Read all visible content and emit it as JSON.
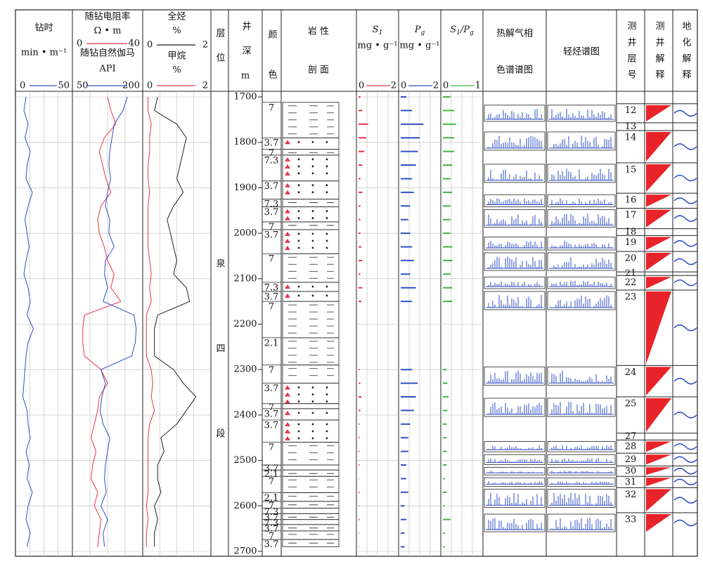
{
  "chart_data": {
    "type": "well-log",
    "depth": {
      "label": "井深",
      "unit": "m",
      "ylim": [
        1700,
        2700
      ],
      "yticks": [
        1700,
        1800,
        1900,
        2000,
        2100,
        2200,
        2300,
        2400,
        2500,
        2600,
        2700
      ],
      "samples": [
        1700,
        1730,
        1760,
        1790,
        1820,
        1850,
        1880,
        1910,
        1940,
        1970,
        2000,
        2030,
        2060,
        2090,
        2120,
        2150,
        2180,
        2210,
        2240,
        2270,
        2300,
        2330,
        2360,
        2390,
        2420,
        2450,
        2480,
        2510,
        2540,
        2570,
        2600,
        2630,
        2660,
        2690
      ]
    },
    "tracks": [
      {
        "name": "钻时",
        "unit": "min • m⁻¹",
        "xlim": [
          0,
          50
        ],
        "color": "#2f4fc4",
        "kind": "line",
        "values": [
          8,
          6,
          10,
          7,
          12,
          9,
          8,
          14,
          10,
          7,
          9,
          11,
          8,
          6,
          10,
          12,
          9,
          15,
          10,
          8,
          7,
          6,
          5,
          9,
          10,
          12,
          8,
          11,
          9,
          14,
          10,
          8,
          12,
          9
        ]
      },
      {
        "name": "随钻电阻率",
        "unit": "Ω • m",
        "xlim": [
          0,
          40
        ],
        "color": "#e8334a",
        "kind": "line",
        "values": [
          20,
          22,
          25,
          18,
          15,
          17,
          19,
          22,
          16,
          14,
          15,
          18,
          20,
          24,
          22,
          28,
          6,
          5,
          5,
          6,
          16,
          20,
          15,
          14,
          12,
          10,
          13,
          11,
          10,
          14,
          12,
          16,
          15,
          14
        ]
      },
      {
        "name": "随钻自然伽马",
        "unit": "API",
        "xlim": [
          50,
          200
        ],
        "color": "#2f4fc4",
        "kind": "line",
        "values": [
          170,
          160,
          140,
          135,
          130,
          128,
          132,
          125,
          120,
          130,
          128,
          140,
          120,
          118,
          125,
          115,
          185,
          190,
          188,
          180,
          110,
          120,
          112,
          108,
          115,
          130,
          125,
          120,
          118,
          122,
          110,
          125,
          115,
          118
        ]
      },
      {
        "name": "全烃",
        "unit": "%",
        "xlim": [
          0,
          2
        ],
        "color": "#222222",
        "kind": "line",
        "values": [
          0.4,
          0.3,
          1.0,
          1.3,
          1.2,
          1.1,
          1.0,
          1.2,
          0.9,
          0.7,
          0.8,
          0.9,
          1.0,
          0.9,
          1.3,
          1.4,
          0.4,
          0.3,
          0.3,
          0.3,
          0.9,
          1.2,
          1.6,
          1.3,
          1.0,
          0.5,
          0.6,
          0.4,
          0.4,
          0.5,
          0.3,
          0.4,
          0.3,
          0.3
        ]
      },
      {
        "name": "甲烷",
        "unit": "%",
        "xlim": [
          0,
          2
        ],
        "color": "#e8334a",
        "kind": "line",
        "values": [
          0.1,
          0.1,
          0.2,
          0.15,
          0.15,
          0.1,
          0.1,
          0.15,
          0.1,
          0.1,
          0.1,
          0.1,
          0.15,
          0.2,
          0.15,
          0.2,
          0.05,
          0.05,
          0.05,
          0.05,
          0.2,
          0.25,
          0.2,
          0.3,
          0.15,
          0.1,
          0.1,
          0.1,
          0.1,
          0.1,
          0.05,
          0.1,
          0.05,
          0.05
        ]
      },
      {
        "symbol": "S",
        "sub": "1",
        "unit": "mg • g⁻¹",
        "xlim": [
          0,
          2
        ],
        "color": "#e8334a",
        "kind": "bar",
        "values": [
          0.1,
          0.2,
          0.5,
          0.4,
          0.3,
          0.2,
          0.1,
          0.2,
          0.1,
          0.1,
          0.1,
          0.15,
          0.2,
          0.1,
          0.2,
          0.15,
          null,
          null,
          null,
          null,
          0.05,
          0.1,
          0.15,
          0.1,
          0.05,
          0.05,
          0.05,
          0.05,
          0.02,
          0.05,
          0.02,
          0.05,
          0.02,
          0.02
        ]
      },
      {
        "symbol": "P",
        "sub": "g",
        "unit": "mg • g⁻¹",
        "xlim": [
          0,
          2
        ],
        "color": "#2f4fc4",
        "kind": "bar",
        "values": [
          0.3,
          0.6,
          1.2,
          1.0,
          0.9,
          0.8,
          0.6,
          0.7,
          0.5,
          0.4,
          0.5,
          0.6,
          0.7,
          0.5,
          0.8,
          0.6,
          null,
          null,
          null,
          null,
          0.6,
          0.9,
          0.8,
          0.7,
          0.5,
          0.4,
          0.4,
          0.3,
          0.3,
          0.4,
          0.2,
          0.3,
          0.2,
          0.2
        ]
      },
      {
        "symbol": "S",
        "sub": "1",
        "symbol2": "/P",
        "sub2": "g",
        "xlim": [
          0,
          1
        ],
        "color": "#3cb83c",
        "kind": "bar",
        "values": [
          0.2,
          0.3,
          0.35,
          0.3,
          0.3,
          0.25,
          0.2,
          0.25,
          0.2,
          0.2,
          0.2,
          0.25,
          0.25,
          0.2,
          0.25,
          0.25,
          null,
          null,
          null,
          null,
          0.1,
          0.12,
          0.15,
          0.12,
          0.1,
          0.1,
          0.1,
          0.1,
          0.05,
          0.1,
          0.05,
          0.2,
          0.05,
          0.05
        ]
      }
    ],
    "formation": {
      "label": "层位",
      "name": "泉四段"
    },
    "color_column": {
      "label": "颜色",
      "codes": [
        {
          "depth": 1712,
          "label": "7"
        },
        {
          "depth": 1790,
          "label": "3.7"
        },
        {
          "depth": 1815,
          "label": "7"
        },
        {
          "depth": 1828,
          "label": "7.3"
        },
        {
          "depth": 1885,
          "label": "3.7"
        },
        {
          "depth": 1925,
          "label": "7.3"
        },
        {
          "depth": 1942,
          "label": "3.7"
        },
        {
          "depth": 1975,
          "label": "7"
        },
        {
          "depth": 1992,
          "label": "3.7"
        },
        {
          "depth": 2045,
          "label": "7"
        },
        {
          "depth": 2108,
          "label": "7.3"
        },
        {
          "depth": 2128,
          "label": "3.7"
        },
        {
          "depth": 2150,
          "label": "7"
        },
        {
          "depth": 2230,
          "label": "2.1"
        },
        {
          "depth": 2290,
          "label": "7"
        },
        {
          "depth": 2330,
          "label": "3.7"
        },
        {
          "depth": 2375,
          "label": "7"
        },
        {
          "depth": 2386,
          "label": "3.7"
        },
        {
          "depth": 2411,
          "label": "3.7"
        },
        {
          "depth": 2460,
          "label": "7"
        },
        {
          "depth": 2510,
          "label": "3.7"
        },
        {
          "depth": 2521,
          "label": "2.1"
        },
        {
          "depth": 2535,
          "label": "7"
        },
        {
          "depth": 2571,
          "label": "2.1"
        },
        {
          "depth": 2590,
          "label": "7"
        },
        {
          "depth": 2605,
          "label": "7.3"
        },
        {
          "depth": 2617,
          "label": "3.7"
        },
        {
          "depth": 2630,
          "label": "7.3"
        },
        {
          "depth": 2641,
          "label": "3.7"
        },
        {
          "depth": 2655,
          "label": "7"
        },
        {
          "depth": 2674,
          "label": "3.7"
        }
      ]
    },
    "lithology": {
      "label1": "岩 性",
      "label2": "剖 面"
    },
    "pyrolysis_gc": {
      "label1": "热解气相",
      "label2": "色谱谱图"
    },
    "light_hydrocarbon": {
      "label": "轻烃谱图"
    },
    "log_layers": {
      "label": "测井层号",
      "layers": [
        {
          "depth": 1715,
          "label": "12"
        },
        {
          "depth": 1757,
          "label": "13"
        },
        {
          "depth": 1774,
          "label": "14"
        },
        {
          "depth": 1845,
          "label": "15"
        },
        {
          "depth": 1912,
          "label": "16"
        },
        {
          "depth": 1945,
          "label": "17"
        },
        {
          "depth": 1990,
          "label": "18"
        },
        {
          "depth": 2005,
          "label": "19"
        },
        {
          "depth": 2040,
          "label": "20"
        },
        {
          "depth": 2085,
          "label": "21"
        },
        {
          "depth": 2093,
          "label": "22"
        },
        {
          "depth": 2125,
          "label": "23"
        },
        {
          "depth": 2291,
          "label": "24"
        },
        {
          "depth": 2360,
          "label": "25"
        },
        {
          "depth": 2440,
          "label": "27"
        },
        {
          "depth": 2455,
          "label": "28"
        },
        {
          "depth": 2484,
          "label": "29"
        },
        {
          "depth": 2512,
          "label": "30"
        },
        {
          "depth": 2535,
          "label": "31"
        },
        {
          "depth": 2560,
          "label": "32"
        },
        {
          "depth": 2615,
          "label": "33"
        }
      ]
    },
    "log_interpretation": {
      "label": "测井解释"
    },
    "geochem_interpretation": {
      "label": "地化解释"
    }
  }
}
